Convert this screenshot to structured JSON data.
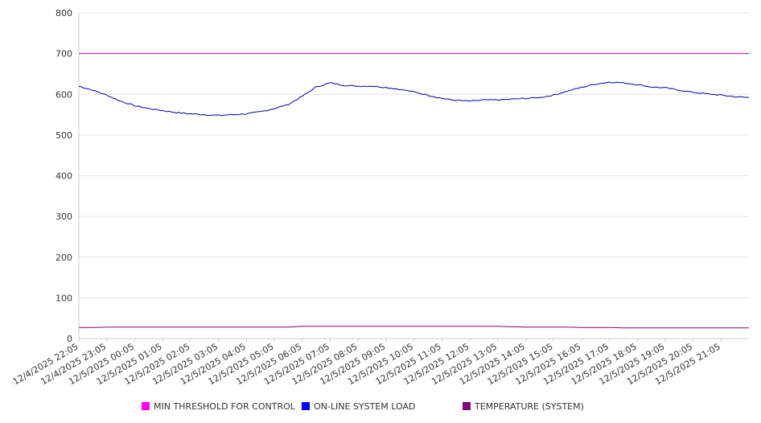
{
  "chart_data": {
    "type": "line",
    "title": "",
    "xlabel": "",
    "ylabel": "",
    "ylim": [
      0,
      800
    ],
    "y_ticks": [
      0,
      100,
      200,
      300,
      400,
      500,
      600,
      700,
      800
    ],
    "grid": true,
    "legend_position": "bottom",
    "x_tick_labels": [
      "12/4/2025 22:05",
      "12/4/2025 23:05",
      "12/5/2025 00:05",
      "12/5/2025 01:05",
      "12/5/2025 02:05",
      "12/5/2025 03:05",
      "12/5/2025 04:05",
      "12/5/2025 05:05",
      "12/5/2025 06:05",
      "12/5/2025 07:05",
      "12/5/2025 08:05",
      "12/5/2025 09:05",
      "12/5/2025 10:05",
      "12/5/2025 11:05",
      "12/5/2025 12:05",
      "12/5/2025 13:05",
      "12/5/2025 14:05",
      "12/5/2025 15:05",
      "12/5/2025 16:05",
      "12/5/2025 17:05",
      "12/5/2025 18:05",
      "12/5/2025 19:05",
      "12/5/2025 20:05",
      "12/5/2025 21:05"
    ],
    "x": [
      "12/4/2025 22:05",
      "12/4/2025 22:35",
      "12/4/2025 23:05",
      "12/4/2025 23:35",
      "12/5/2025 00:05",
      "12/5/2025 00:35",
      "12/5/2025 01:05",
      "12/5/2025 01:35",
      "12/5/2025 02:05",
      "12/5/2025 02:35",
      "12/5/2025 03:05",
      "12/5/2025 03:35",
      "12/5/2025 04:05",
      "12/5/2025 04:35",
      "12/5/2025 05:05",
      "12/5/2025 05:35",
      "12/5/2025 06:05",
      "12/5/2025 06:35",
      "12/5/2025 07:05",
      "12/5/2025 07:35",
      "12/5/2025 08:05",
      "12/5/2025 08:35",
      "12/5/2025 09:05",
      "12/5/2025 09:35",
      "12/5/2025 10:05",
      "12/5/2025 10:35",
      "12/5/2025 11:05",
      "12/5/2025 11:35",
      "12/5/2025 12:05",
      "12/5/2025 12:35",
      "12/5/2025 13:05",
      "12/5/2025 13:35",
      "12/5/2025 14:05",
      "12/5/2025 14:35",
      "12/5/2025 15:05",
      "12/5/2025 15:35",
      "12/5/2025 16:05",
      "12/5/2025 16:35",
      "12/5/2025 17:05",
      "12/5/2025 17:35",
      "12/5/2025 18:05",
      "12/5/2025 18:35",
      "12/5/2025 19:05",
      "12/5/2025 19:35",
      "12/5/2025 20:05",
      "12/5/2025 20:35",
      "12/5/2025 21:05",
      "12/5/2025 21:35",
      "12/5/2025 22:05"
    ],
    "series": [
      {
        "name": "MIN THRESHOLD FOR CONTROL",
        "color": "#cc00cc",
        "legend_color": "#ff00ff",
        "values": [
          700,
          700,
          700,
          700,
          700,
          700,
          700,
          700,
          700,
          700,
          700,
          700,
          700,
          700,
          700,
          700,
          700,
          700,
          700,
          700,
          700,
          700,
          700,
          700,
          700,
          700,
          700,
          700,
          700,
          700,
          700,
          700,
          700,
          700,
          700,
          700,
          700,
          700,
          700,
          700,
          700,
          700,
          700,
          700,
          700,
          700,
          700,
          700,
          700
        ]
      },
      {
        "name": "ON-LINE SYSTEM LOAD",
        "color": "#0000aa",
        "legend_color": "#0000ff",
        "values": [
          620,
          610,
          598,
          583,
          572,
          565,
          560,
          555,
          552,
          550,
          548,
          550,
          552,
          557,
          565,
          575,
          595,
          618,
          628,
          622,
          620,
          620,
          617,
          612,
          606,
          598,
          590,
          585,
          583,
          586,
          586,
          588,
          590,
          592,
          598,
          608,
          617,
          625,
          630,
          628,
          624,
          618,
          616,
          610,
          605,
          601,
          598,
          594,
          592
        ]
      },
      {
        "name": "TEMPERATURE (SYSTEM)",
        "color": "#800080",
        "legend_color": "#800080",
        "values": [
          27,
          27,
          28,
          28,
          28,
          28,
          28,
          28,
          28,
          28,
          28,
          28,
          28,
          28,
          28,
          28,
          30,
          30,
          30,
          30,
          30,
          30,
          30,
          30,
          30,
          30,
          30,
          30,
          30,
          30,
          30,
          29,
          28,
          28,
          28,
          28,
          27,
          27,
          27,
          26,
          26,
          26,
          26,
          26,
          26,
          26,
          26,
          26,
          26
        ]
      }
    ]
  }
}
